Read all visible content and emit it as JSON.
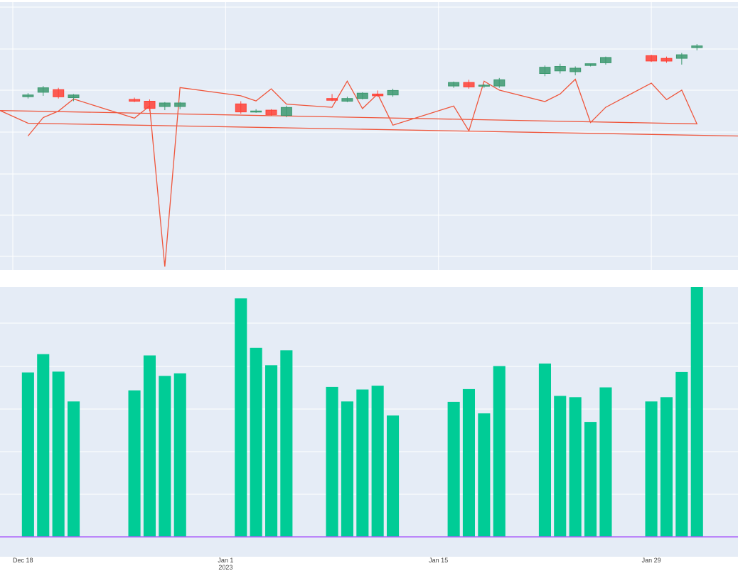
{
  "colors": {
    "plot_bg": "#e5ecf6",
    "grid": "#ffffff",
    "increasing": "#3d9970",
    "decreasing": "#ff4136",
    "line": "#ef553b",
    "bar": "#00cc96",
    "baseline": "#ab63fa",
    "tick_text": "#444444"
  },
  "chart_data": [
    {
      "type": "candlestick",
      "panel": "top",
      "x": [
        "2022-12-19",
        "2022-12-20",
        "2022-12-21",
        "2022-12-22",
        "2022-12-26",
        "2022-12-27",
        "2022-12-28",
        "2022-12-29",
        "2023-01-02",
        "2023-01-03",
        "2023-01-04",
        "2023-01-05",
        "2023-01-08",
        "2023-01-09",
        "2023-01-10",
        "2023-01-11",
        "2023-01-12",
        "2023-01-16",
        "2023-01-17",
        "2023-01-18",
        "2023-01-19",
        "2023-01-22",
        "2023-01-23",
        "2023-01-24",
        "2023-01-25",
        "2023-01-26",
        "2023-01-29",
        "2023-01-30",
        "2023-01-31",
        "2023-02-01"
      ],
      "open": [
        99.4,
        99.9,
        100.2,
        99.3,
        99.1,
        98.9,
        98.3,
        98.3,
        98.6,
        97.8,
        97.9,
        97.3,
        99.2,
        98.9,
        99.2,
        99.7,
        99.6,
        100.6,
        101.0,
        100.6,
        100.6,
        102.0,
        102.3,
        102.2,
        102.9,
        103.2,
        104.0,
        103.7,
        103.7,
        104.9
      ],
      "high": [
        99.8,
        100.6,
        100.4,
        99.7,
        99.3,
        99.1,
        98.8,
        98.8,
        98.9,
        98.0,
        98.0,
        98.4,
        99.7,
        99.4,
        99.9,
        100.1,
        100.3,
        101.1,
        101.3,
        100.8,
        101.5,
        102.9,
        103.1,
        102.8,
        103.1,
        103.9,
        104.1,
        103.9,
        104.3,
        105.3
      ],
      "low": [
        99.2,
        99.5,
        99.2,
        98.9,
        98.8,
        97.8,
        97.9,
        98.0,
        97.5,
        97.6,
        97.3,
        97.1,
        98.9,
        98.8,
        99.1,
        99.4,
        99.4,
        100.4,
        100.3,
        100.4,
        100.4,
        101.7,
        102.0,
        101.8,
        102.8,
        103.0,
        103.3,
        103.2,
        103.0,
        104.6
      ],
      "close": [
        99.6,
        100.4,
        99.4,
        99.6,
        98.9,
        98.1,
        98.7,
        98.7,
        97.7,
        97.8,
        97.4,
        98.2,
        99.0,
        99.2,
        99.8,
        99.5,
        100.1,
        101.0,
        100.5,
        100.7,
        101.3,
        102.7,
        102.8,
        102.6,
        103.1,
        103.8,
        103.4,
        103.4,
        104.1,
        105.1
      ],
      "line_x": [
        "2022-12-19",
        "2022-12-20",
        "2022-12-21",
        "2022-12-22",
        "2022-12-26",
        "2022-12-27",
        "2022-12-28",
        "2022-12-29",
        "2023-01-02",
        "2023-01-03",
        "2023-01-04",
        "2023-01-05",
        "2023-01-08",
        "2023-01-09",
        "2023-01-10",
        "2023-01-11",
        "2023-01-12",
        "2023-01-16",
        "2023-01-17",
        "2023-01-18",
        "2023-01-19",
        "2023-01-22",
        "2023-01-23",
        "2023-01-24",
        "2023-01-25",
        "2023-01-26",
        "2023-01-29",
        "2023-01-30",
        "2023-01-31",
        "2023-02-01",
        "2022-12-13",
        "2022-12-19",
        "2023-02-05"
      ],
      "line_y": [
        -6.0,
        -3.1,
        -2.1,
        -0.2,
        -3.2,
        -1.3,
        -26.5,
        1.6,
        0.3,
        -0.5,
        1.4,
        -1.0,
        -1.5,
        2.6,
        -1.7,
        0.6,
        -4.3,
        -1.3,
        -5.2,
        2.6,
        1.2,
        -0.6,
        0.6,
        2.9,
        -3.9,
        -1.5,
        2.3,
        -0.3,
        1.2,
        -4.1,
        -2.0,
        -4.0,
        -6.0
      ],
      "ylim": [
        -27,
        15
      ],
      "xlim": [
        "2022-12-18",
        "2023-02-03"
      ],
      "grid": true
    },
    {
      "type": "bar",
      "panel": "bottom",
      "x": [
        "2022-12-19",
        "2022-12-20",
        "2022-12-21",
        "2022-12-22",
        "2022-12-26",
        "2022-12-27",
        "2022-12-28",
        "2022-12-29",
        "2023-01-02",
        "2023-01-03",
        "2023-01-04",
        "2023-01-05",
        "2023-01-08",
        "2023-01-09",
        "2023-01-10",
        "2023-01-11",
        "2023-01-12",
        "2023-01-16",
        "2023-01-17",
        "2023-01-18",
        "2023-01-19",
        "2023-01-22",
        "2023-01-23",
        "2023-01-24",
        "2023-01-25",
        "2023-01-26",
        "2023-01-29",
        "2023-01-30",
        "2023-01-31",
        "2023-02-01"
      ],
      "values": [
        3.86,
        4.29,
        3.88,
        3.18,
        3.44,
        4.26,
        3.78,
        3.84,
        5.6,
        4.44,
        4.03,
        4.38,
        3.52,
        3.18,
        3.46,
        3.55,
        2.85,
        3.17,
        3.47,
        2.9,
        4.01,
        4.07,
        3.31,
        3.28,
        2.7,
        3.51,
        3.18,
        3.28,
        3.87,
        5.87
      ],
      "ylim": [
        0,
        5.87
      ],
      "xlim": [
        "2022-12-18",
        "2023-02-03"
      ],
      "grid": true
    }
  ],
  "x_ticks": [
    {
      "date": "2022-12-18",
      "label": "Dec 18",
      "sub": ""
    },
    {
      "date": "2023-01-01",
      "label": "Jan 1",
      "sub": "2023"
    },
    {
      "date": "2023-01-15",
      "label": "Jan 15",
      "sub": ""
    },
    {
      "date": "2023-01-29",
      "label": "Jan 29",
      "sub": ""
    }
  ]
}
